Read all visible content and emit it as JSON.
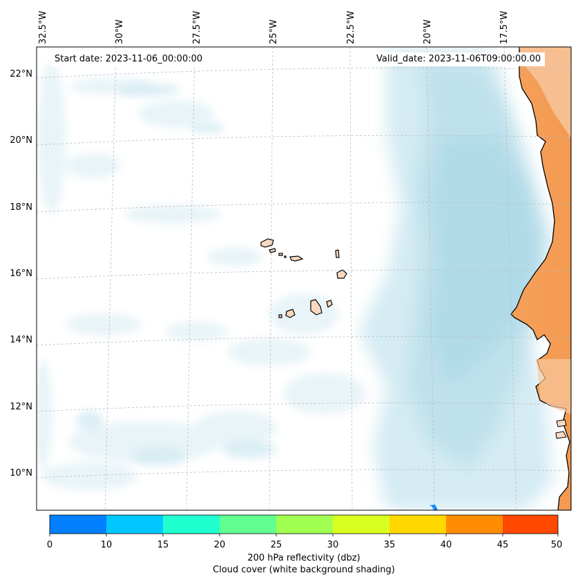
{
  "annotations": {
    "start_date": "Start date: 2023-11-06_00:00:00",
    "valid_date": "Valid_date: 2023-11-06T09:00:00.00"
  },
  "colorbar": {
    "title_line1": "200 hPa reflectivity (dbz)",
    "title_line2": "Cloud cover (white background shading)",
    "ticks": [
      "0",
      "10",
      "15",
      "20",
      "25",
      "30",
      "35",
      "40",
      "45",
      "50"
    ],
    "colors": [
      "#0080ff",
      "#00c8ff",
      "#20ffd0",
      "#60ff90",
      "#a0ff50",
      "#d8ff20",
      "#ffd800",
      "#ff8c00",
      "#ff4800"
    ]
  },
  "map": {
    "longitude_labels": [
      "32.5°W",
      "30°W",
      "27.5°W",
      "25°W",
      "22.5°W",
      "20°W",
      "17.5°W"
    ],
    "latitude_labels": [
      "22°N",
      "20°N",
      "18°N",
      "16°N",
      "14°N",
      "12°N",
      "10°N"
    ],
    "colors": {
      "ocean": "#ffffff",
      "cloud_light": "#e8f4f8",
      "cloud_mid": "#cfe8f0",
      "cloud_dense": "#aed8e6",
      "land_coast": "#f5a05a",
      "land_interior": "#f8c8a0",
      "island": "#f8d8c0",
      "coastline": "#000000",
      "gridline": "#bbbbbb"
    }
  }
}
